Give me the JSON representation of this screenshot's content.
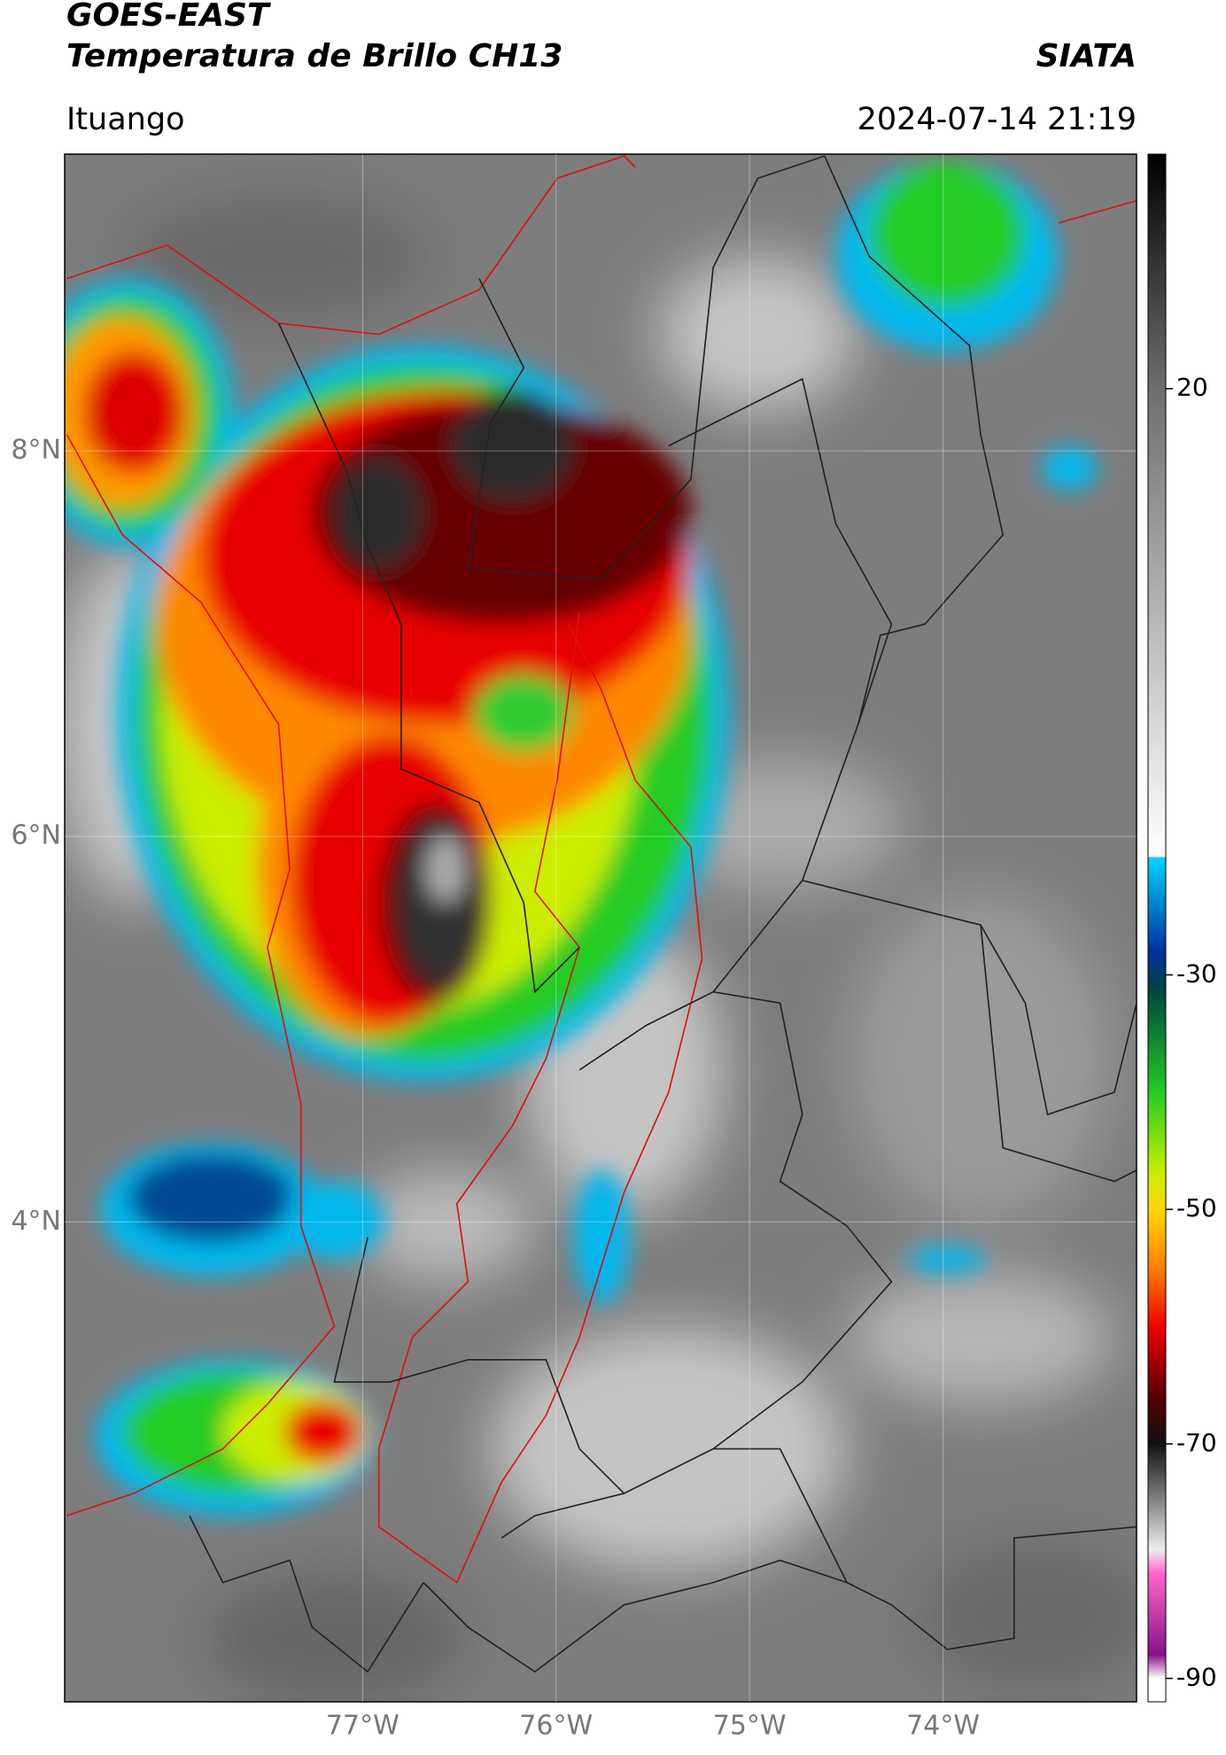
{
  "header": {
    "title": "GOES-EAST",
    "subtitle": "Temperatura de Brillo CH13",
    "source": "SIATA",
    "location": "Ituango",
    "datetime": "2024-07-14 21:19"
  },
  "map": {
    "xlim": [
      -78.54,
      -73
    ],
    "ylim": [
      1.51,
      9.54
    ],
    "xticks": [
      {
        "value": -77,
        "label": "77°W"
      },
      {
        "value": -76,
        "label": "76°W"
      },
      {
        "value": -75,
        "label": "75°W"
      },
      {
        "value": -74,
        "label": "74°W"
      }
    ],
    "yticks": [
      {
        "value": 8,
        "label": "8°N"
      },
      {
        "value": 6,
        "label": "6°N"
      },
      {
        "value": 4,
        "label": "4°N"
      }
    ],
    "grid": true
  },
  "colorbar": {
    "lim": [
      -92,
      40
    ],
    "ticks": [
      20,
      -30,
      -50,
      -70,
      -90
    ],
    "stops": [
      [
        40,
        "#000000"
      ],
      [
        20,
        "#6e6e6e"
      ],
      [
        -10,
        "#dddddd"
      ],
      [
        -19.9,
        "#ffffff"
      ],
      [
        -20,
        "#00d4ff"
      ],
      [
        -28,
        "#0030a0"
      ],
      [
        -31,
        "#004040"
      ],
      [
        -40,
        "#22cc22"
      ],
      [
        -47,
        "#ccee00"
      ],
      [
        -50,
        "#ffd700"
      ],
      [
        -55,
        "#ff7f00"
      ],
      [
        -60,
        "#ee0000"
      ],
      [
        -66,
        "#550000"
      ],
      [
        -70,
        "#111111"
      ],
      [
        -75,
        "#888888"
      ],
      [
        -79,
        "#eeeeee"
      ],
      [
        -81,
        "#ff66cc"
      ],
      [
        -88,
        "#881188"
      ],
      [
        -90,
        "#ffffff"
      ],
      [
        -92,
        "#ffffff"
      ]
    ]
  }
}
